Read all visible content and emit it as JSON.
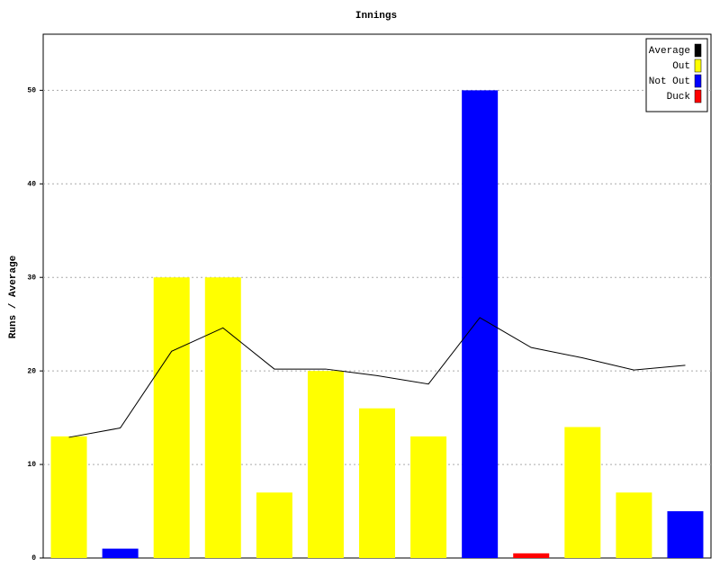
{
  "chart_data": {
    "type": "bar",
    "title": "Innings",
    "y_label": "Runs / Average",
    "series": [
      {
        "name": "Average",
        "color": "#000000",
        "type": "line",
        "values": [
          12.9,
          13.9,
          22.1,
          24.6,
          20.2,
          20.2,
          19.5,
          18.6,
          25.7,
          22.5,
          21.4,
          20.1,
          20.6
        ]
      },
      {
        "name": "Out",
        "color": "#ffff00",
        "values": [
          13,
          null,
          30,
          30,
          7,
          20,
          16,
          13,
          null,
          null,
          14,
          7,
          null
        ]
      },
      {
        "name": "Not Out",
        "color": "#0000ff",
        "values": [
          null,
          1,
          null,
          null,
          null,
          null,
          null,
          null,
          50,
          null,
          null,
          null,
          5
        ]
      },
      {
        "name": "Duck",
        "color": "#ff0000",
        "values": [
          null,
          null,
          null,
          null,
          null,
          null,
          null,
          null,
          null,
          0.5,
          null,
          null,
          null
        ]
      }
    ],
    "ylim": [
      0,
      56
    ],
    "yticks": [
      0,
      10,
      20,
      30,
      40,
      50
    ],
    "grid": true,
    "legend": "top-right"
  }
}
